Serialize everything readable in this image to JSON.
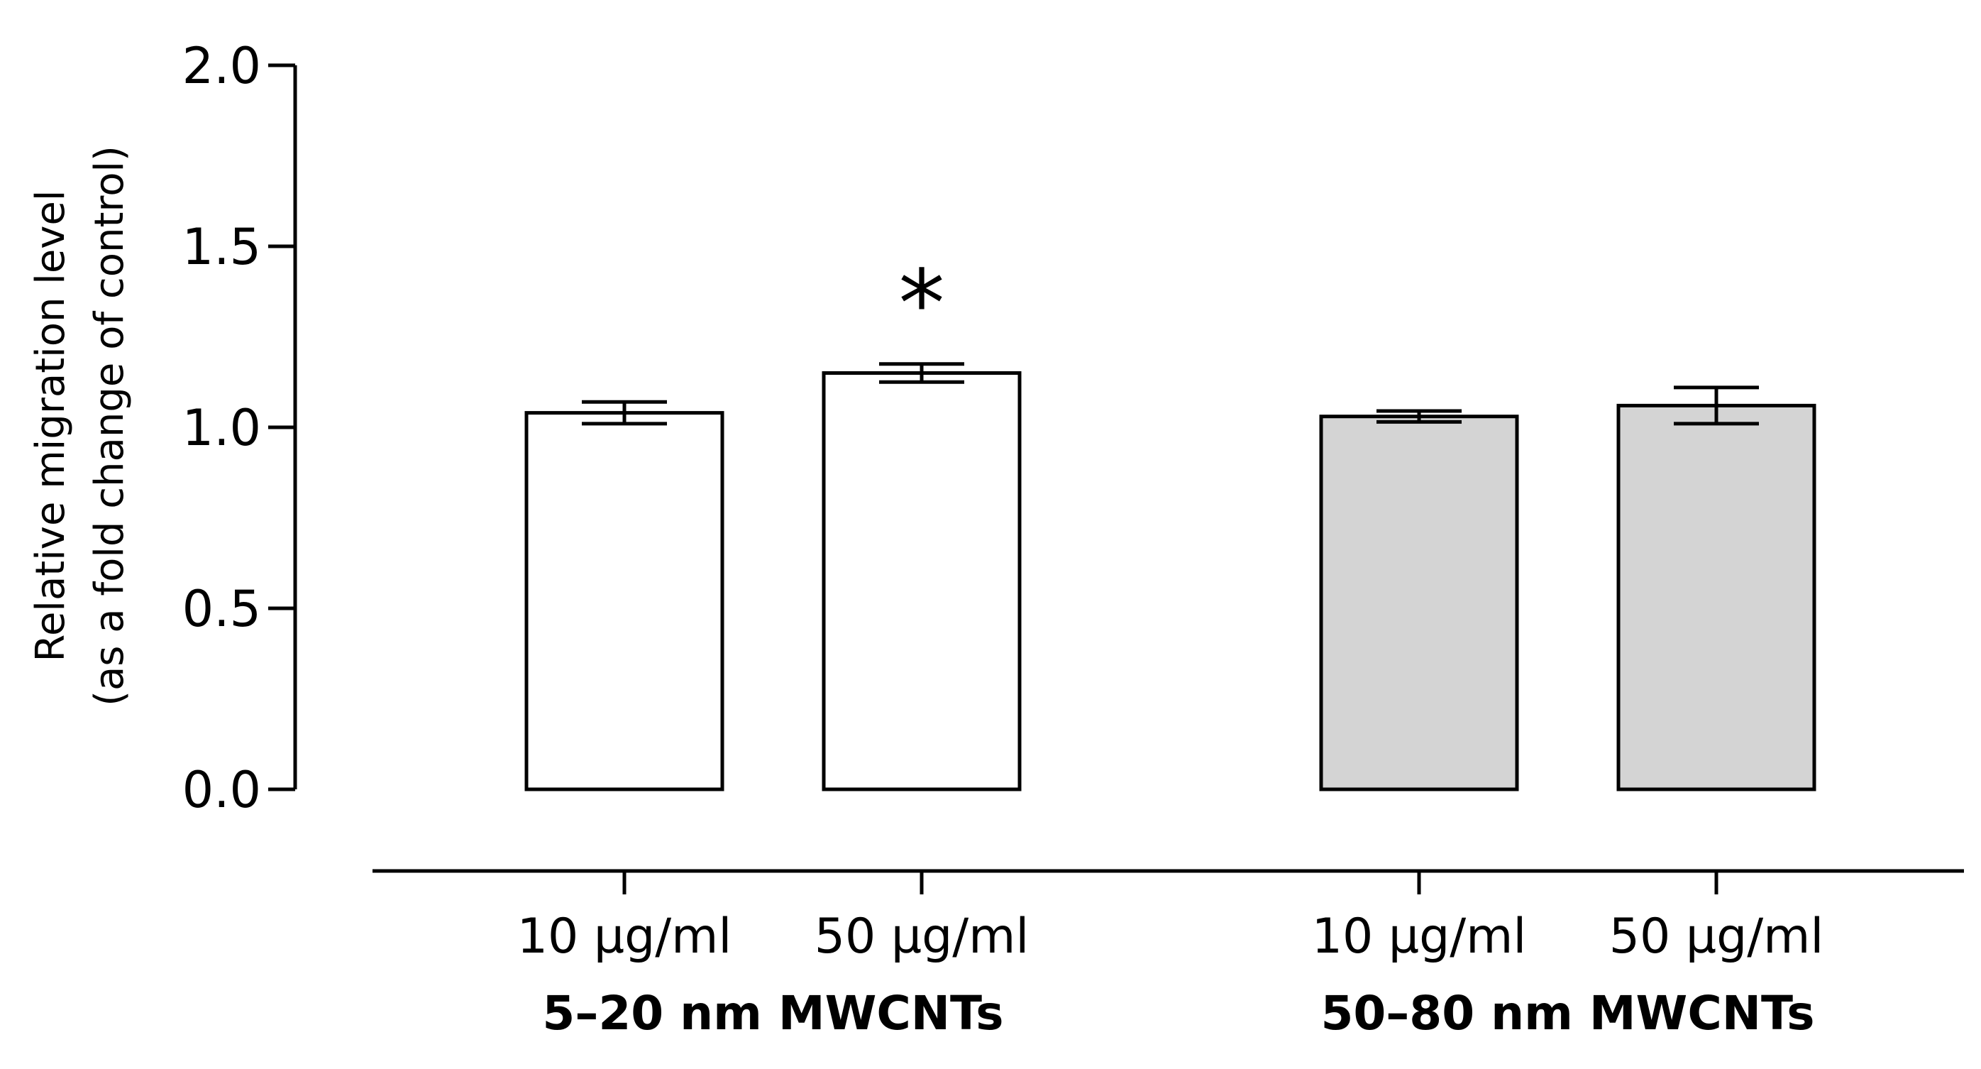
{
  "chart_data": {
    "type": "bar",
    "ylabel_lines": [
      "Relative migration level",
      "(as a fold change of control)"
    ],
    "ylim": [
      0.0,
      2.0
    ],
    "yticks": [
      "0.0",
      "0.5",
      "1.0",
      "1.5",
      "2.0"
    ],
    "ytick_values": [
      0.0,
      0.5,
      1.0,
      1.5,
      2.0
    ],
    "groups": [
      {
        "label": "5–20 nm MWCNTs",
        "color": "#ffffff",
        "bars": [
          {
            "category": "10 µg/ml",
            "value": 1.04,
            "error": 0.03,
            "annotation": ""
          },
          {
            "category": "50 µg/ml",
            "value": 1.15,
            "error": 0.025,
            "annotation": "*"
          }
        ]
      },
      {
        "label": "50–80 nm MWCNTs",
        "color": "#d4d4d4",
        "bars": [
          {
            "category": "10 µg/ml",
            "value": 1.03,
            "error": 0.015,
            "annotation": ""
          },
          {
            "category": "50 µg/ml",
            "value": 1.06,
            "error": 0.05,
            "annotation": ""
          }
        ]
      }
    ],
    "grid": false,
    "legend": "none"
  }
}
